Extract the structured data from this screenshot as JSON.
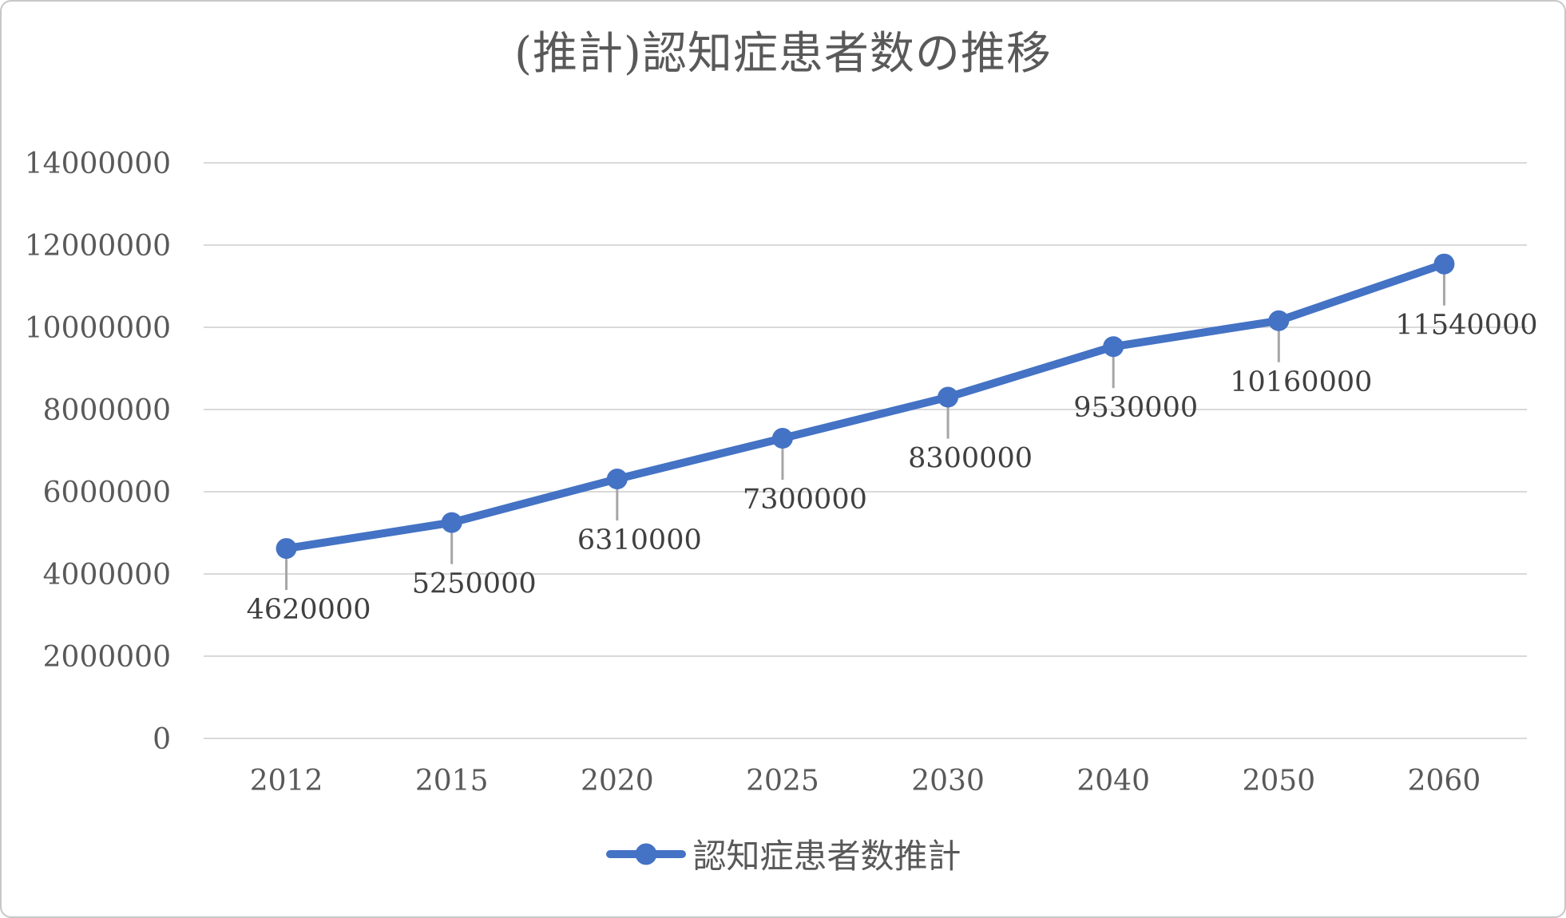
{
  "chart_data": {
    "type": "line",
    "title": "(推計)認知症患者数の推移",
    "categories": [
      "2012",
      "2015",
      "2020",
      "2025",
      "2030",
      "2040",
      "2050",
      "2060"
    ],
    "series": [
      {
        "name": "認知症患者数推計",
        "values": [
          4620000,
          5250000,
          6310000,
          7300000,
          8300000,
          9530000,
          10160000,
          11540000
        ]
      }
    ],
    "data_labels": [
      "4620000",
      "5250000",
      "6310000",
      "7300000",
      "8300000",
      "9530000",
      "10160000",
      "11540000"
    ],
    "xlabel": "",
    "ylabel": "",
    "ylim": [
      0,
      14000000
    ],
    "y_ticks": [
      0,
      2000000,
      4000000,
      6000000,
      8000000,
      10000000,
      12000000,
      14000000
    ],
    "y_tick_labels": [
      "0",
      "2000000",
      "4000000",
      "6000000",
      "8000000",
      "10000000",
      "12000000",
      "14000000"
    ],
    "grid": "horizontal",
    "legend_position": "bottom",
    "colors": {
      "series": "#4472C4",
      "grid": "#D9D9D9",
      "axis_line": "#D9D9D9",
      "axis_text": "#595959",
      "data_label_text": "#404040",
      "leader_line": "#A6A6A6",
      "title_text": "#595959",
      "border": "#C7C7C7",
      "background": "#FFFFFF"
    }
  }
}
